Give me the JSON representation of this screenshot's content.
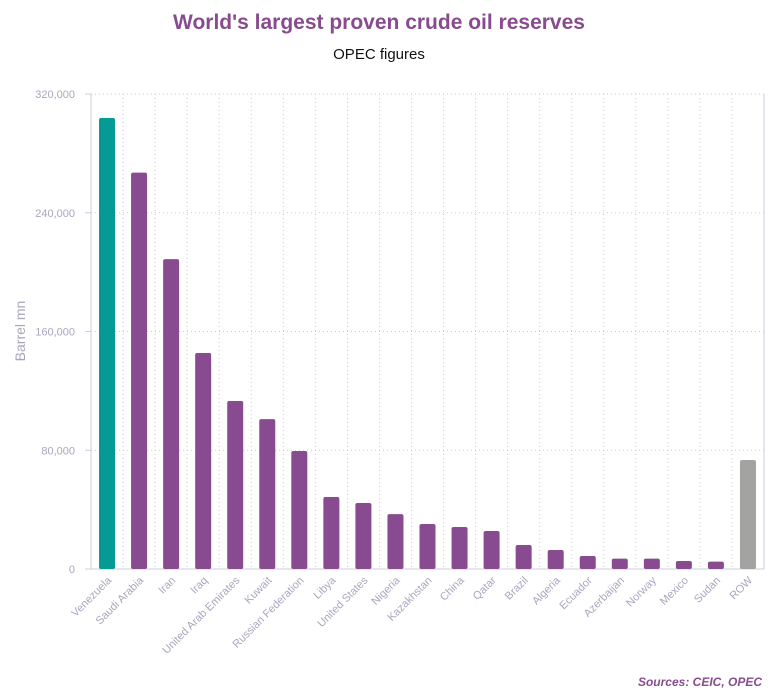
{
  "chart_data": {
    "type": "bar",
    "title": "World's largest proven crude oil reserves",
    "subtitle": "OPEC figures",
    "xlabel": "",
    "ylabel": "Barrel mn",
    "ylim": [
      0,
      320000
    ],
    "yticks": [
      0,
      80000,
      160000,
      240000,
      320000
    ],
    "ytick_labels": [
      "0",
      "80,000",
      "160,000",
      "240,000",
      "320,000"
    ],
    "grid": true,
    "categories": [
      "Venezuela",
      "Saudi Arabia",
      "Iran",
      "Iraq",
      "United Arab Emirates",
      "Kuwait",
      "Russian Federation",
      "Libya",
      "United States",
      "Nigeria",
      "Kazakhstan",
      "China",
      "Qatar",
      "Brazil",
      "Algeria",
      "Ecuador",
      "Azerbaijan",
      "Norway",
      "Mexico",
      "Sudan",
      "ROW"
    ],
    "values": [
      303800,
      267000,
      208800,
      145500,
      113200,
      101000,
      79500,
      48500,
      44500,
      37000,
      30300,
      28300,
      25600,
      16200,
      12800,
      8800,
      7000,
      7000,
      5400,
      5000,
      73400
    ],
    "colors": {
      "highlight": "#069a96",
      "default": "#884b8f",
      "other": "#a3a3a1"
    },
    "bar_color_roles": [
      "highlight",
      "default",
      "default",
      "default",
      "default",
      "default",
      "default",
      "default",
      "default",
      "default",
      "default",
      "default",
      "default",
      "default",
      "default",
      "default",
      "default",
      "default",
      "default",
      "default",
      "other"
    ],
    "source": "Sources: CEIC, OPEC"
  }
}
